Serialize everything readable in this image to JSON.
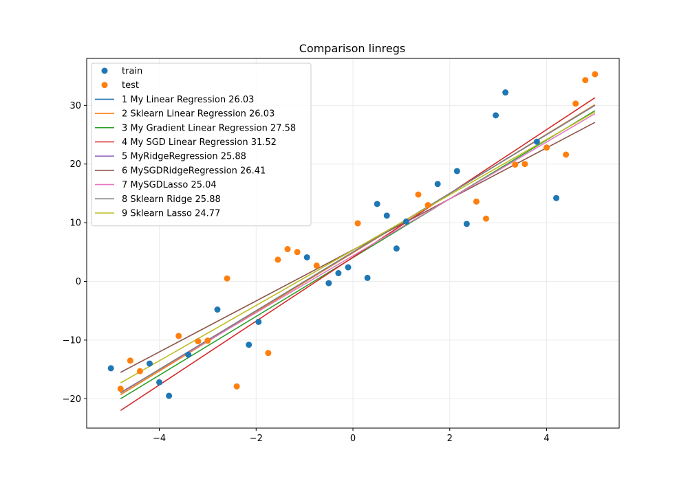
{
  "chart_data": {
    "type": "scatter",
    "title": "Comparison linregs",
    "xlabel": "",
    "ylabel": "",
    "xlim": [
      -5.5,
      5.5
    ],
    "ylim": [
      -25,
      38
    ],
    "x_ticks": [
      -4,
      -2,
      0,
      2,
      4
    ],
    "y_ticks": [
      -20,
      -10,
      0,
      10,
      20,
      30
    ],
    "x_tick_labels": [
      "−4",
      "−2",
      "0",
      "2",
      "4"
    ],
    "y_tick_labels": [
      "−20",
      "−10",
      "0",
      "10",
      "20",
      "30"
    ],
    "grid": true,
    "legend_position": "top-left",
    "scatter_series": [
      {
        "name": "train",
        "color": "#1f77b4",
        "points": [
          {
            "x": -5.0,
            "y": -14.8
          },
          {
            "x": -4.2,
            "y": -14.0
          },
          {
            "x": -4.0,
            "y": -17.2
          },
          {
            "x": -3.8,
            "y": -19.5
          },
          {
            "x": -3.4,
            "y": -12.5
          },
          {
            "x": -2.8,
            "y": -4.8
          },
          {
            "x": -2.15,
            "y": -10.8
          },
          {
            "x": -1.95,
            "y": -6.9
          },
          {
            "x": -0.95,
            "y": 4.1
          },
          {
            "x": -0.5,
            "y": -0.3
          },
          {
            "x": -0.3,
            "y": 1.4
          },
          {
            "x": -0.1,
            "y": 2.4
          },
          {
            "x": 0.3,
            "y": 0.6
          },
          {
            "x": 0.5,
            "y": 13.2
          },
          {
            "x": 0.7,
            "y": 11.2
          },
          {
            "x": 0.9,
            "y": 5.6
          },
          {
            "x": 1.1,
            "y": 10.2
          },
          {
            "x": 1.75,
            "y": 16.6
          },
          {
            "x": 2.15,
            "y": 18.8
          },
          {
            "x": 2.35,
            "y": 9.8
          },
          {
            "x": 2.95,
            "y": 28.3
          },
          {
            "x": 3.15,
            "y": 32.2
          },
          {
            "x": 3.8,
            "y": 23.8
          },
          {
            "x": 4.2,
            "y": 14.2
          }
        ]
      },
      {
        "name": "test",
        "color": "#ff7f0e",
        "points": [
          {
            "x": -4.8,
            "y": -18.3
          },
          {
            "x": -4.6,
            "y": -13.5
          },
          {
            "x": -4.4,
            "y": -15.3
          },
          {
            "x": -3.6,
            "y": -9.3
          },
          {
            "x": -3.2,
            "y": -10.2
          },
          {
            "x": -3.0,
            "y": -10.1
          },
          {
            "x": -2.6,
            "y": 0.5
          },
          {
            "x": -2.4,
            "y": -17.9
          },
          {
            "x": -1.75,
            "y": -12.2
          },
          {
            "x": -1.55,
            "y": 3.7
          },
          {
            "x": -1.35,
            "y": 5.5
          },
          {
            "x": -1.15,
            "y": 5.0
          },
          {
            "x": -0.75,
            "y": 2.7
          },
          {
            "x": 0.1,
            "y": 9.9
          },
          {
            "x": 1.35,
            "y": 14.8
          },
          {
            "x": 1.55,
            "y": 13.0
          },
          {
            "x": 2.55,
            "y": 13.6
          },
          {
            "x": 2.75,
            "y": 10.7
          },
          {
            "x": 3.35,
            "y": 19.9
          },
          {
            "x": 3.55,
            "y": 20.0
          },
          {
            "x": 4.0,
            "y": 22.8
          },
          {
            "x": 4.4,
            "y": 21.6
          },
          {
            "x": 4.6,
            "y": 30.3
          },
          {
            "x": 4.8,
            "y": 34.3
          },
          {
            "x": 5.0,
            "y": 35.3
          }
        ]
      }
    ],
    "line_series": [
      {
        "name": "1 My Linear Regression 26.03",
        "color": "#1f77b4",
        "x": [
          -4.8,
          5.0
        ],
        "y": [
          -19.3,
          30.1
        ]
      },
      {
        "name": "2 Sklearn Linear Regression 26.03",
        "color": "#ff7f0e",
        "x": [
          -4.8,
          5.0
        ],
        "y": [
          -19.3,
          30.1
        ]
      },
      {
        "name": "3 My Gradient Linear Regression 27.58",
        "color": "#2ca02c",
        "x": [
          -4.8,
          5.0
        ],
        "y": [
          -20.0,
          29.1
        ]
      },
      {
        "name": "4 My SGD Linear Regression 31.52",
        "color": "#d62728",
        "x": [
          -4.8,
          5.0
        ],
        "y": [
          -22.0,
          31.3
        ]
      },
      {
        "name": "5 MyRidgeRegression 25.88",
        "color": "#9467bd",
        "x": [
          -4.8,
          5.0
        ],
        "y": [
          -19.0,
          30.0
        ]
      },
      {
        "name": "6 MySGDRidgeRegression 26.41",
        "color": "#8c564b",
        "x": [
          -4.8,
          5.0
        ],
        "y": [
          -15.5,
          27.1
        ]
      },
      {
        "name": "7 MySGDLasso 25.04",
        "color": "#e377c2",
        "x": [
          -4.8,
          5.0
        ],
        "y": [
          -18.9,
          28.6
        ]
      },
      {
        "name": "8 Sklearn Ridge 25.88",
        "color": "#7f7f7f",
        "x": [
          -4.8,
          5.0
        ],
        "y": [
          -19.0,
          30.0
        ]
      },
      {
        "name": "9 Sklearn Lasso 24.77",
        "color": "#bcbd22",
        "x": [
          -4.8,
          5.0
        ],
        "y": [
          -17.3,
          28.9
        ]
      }
    ]
  }
}
